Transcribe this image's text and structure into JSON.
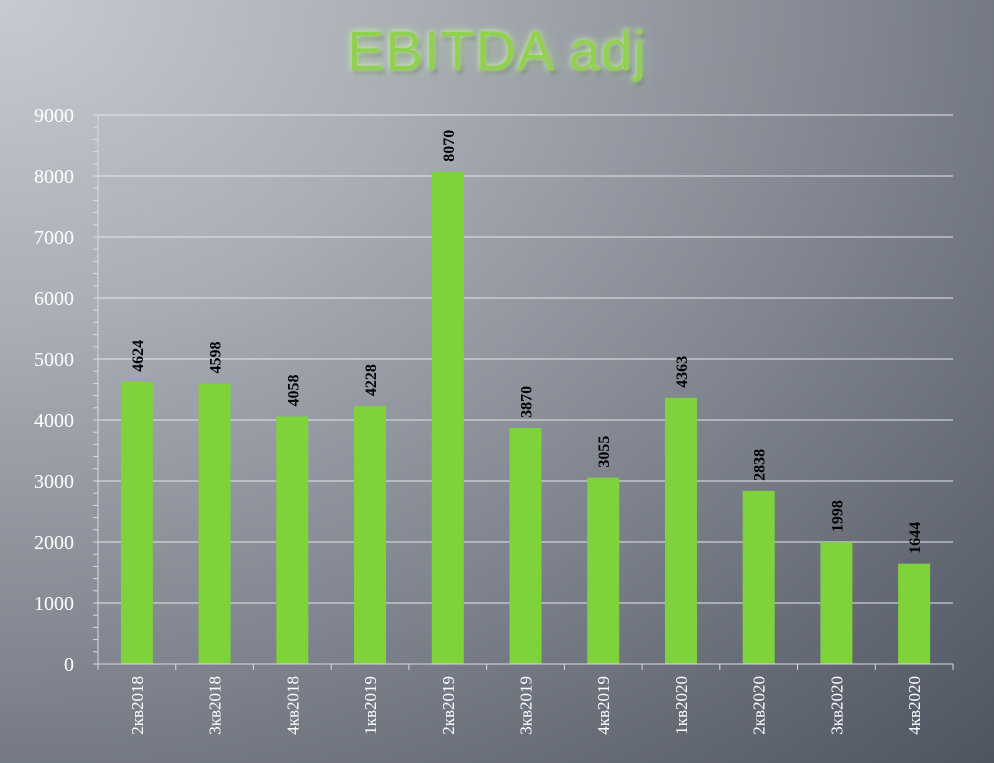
{
  "chart_data": {
    "type": "bar",
    "title": "EBITDA adj",
    "xlabel": "",
    "ylabel": "",
    "categories": [
      "2кв2018",
      "3кв2018",
      "4кв2018",
      "1кв2019",
      "2кв2019",
      "3кв2019",
      "4кв2019",
      "1кв2020",
      "2кв2020",
      "3кв2020",
      "4кв2020"
    ],
    "values": [
      4624,
      4598,
      4058,
      4228,
      8070,
      3870,
      3055,
      4363,
      2838,
      1998,
      1644
    ],
    "ylim": [
      0,
      9000
    ],
    "yticks": [
      0,
      1000,
      2000,
      3000,
      4000,
      5000,
      6000,
      7000,
      8000,
      9000
    ],
    "grid": true,
    "legend": "none",
    "bar_color": "#7ed23a"
  }
}
